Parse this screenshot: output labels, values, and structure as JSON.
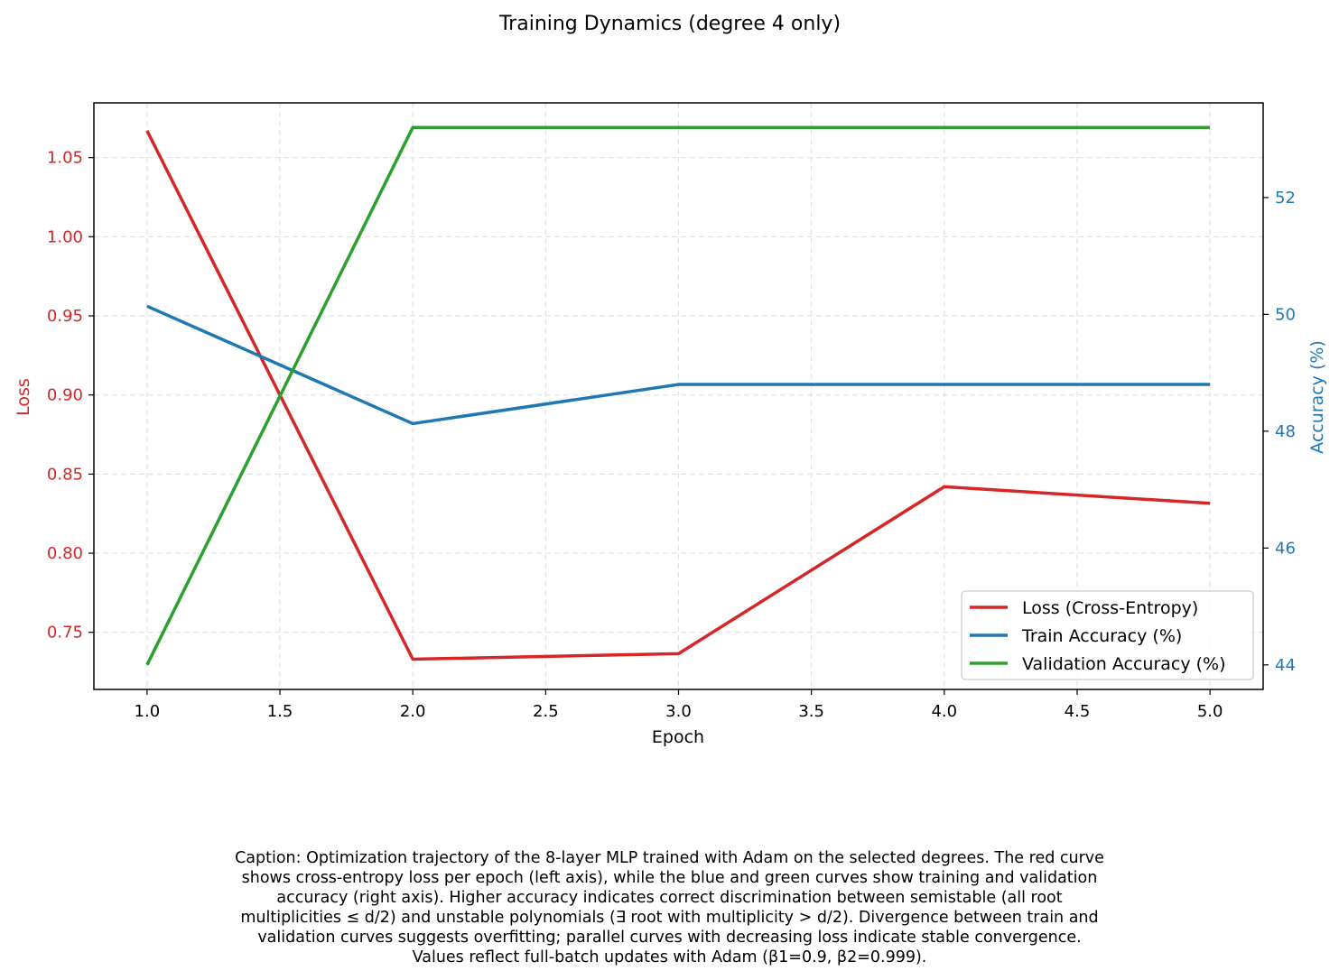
{
  "chart_data": {
    "type": "line",
    "title": "Training Dynamics (degree 4 only)",
    "xlabel": "Epoch",
    "ylabel_left": "Loss",
    "ylabel_right": "Accuracy (%)",
    "x": [
      1,
      2,
      3,
      4,
      5
    ],
    "xlim": [
      0.8,
      5.2
    ],
    "ylim_left": [
      0.7139,
      1.0846
    ],
    "ylim_right": [
      43.58,
      53.62
    ],
    "xticks": [
      "1.0",
      "1.5",
      "2.0",
      "2.5",
      "3.0",
      "3.5",
      "4.0",
      "4.5",
      "5.0"
    ],
    "yticks_left": [
      "0.75",
      "0.80",
      "0.85",
      "0.90",
      "0.95",
      "1.00",
      "1.05"
    ],
    "yticks_right": [
      "44",
      "46",
      "48",
      "50",
      "52"
    ],
    "grid": true,
    "legend_position": "lower-right",
    "series": [
      {
        "name": "Loss (Cross-Entropy)",
        "axis": "left",
        "color": "#d62728",
        "values": [
          1.067,
          0.733,
          0.7365,
          0.842,
          0.8315
        ]
      },
      {
        "name": "Train Accuracy (%)",
        "axis": "right",
        "color": "#1f77b4",
        "values": [
          50.14,
          48.13,
          48.8,
          48.8,
          48.8
        ]
      },
      {
        "name": "Validation Accuracy (%)",
        "axis": "right",
        "color": "#2ca02c",
        "values": [
          44.0,
          53.2,
          53.2,
          53.2,
          53.2
        ]
      }
    ]
  },
  "colors": {
    "left_axis": "#d62728",
    "right_axis": "#1f77b4"
  },
  "caption": "Caption: Optimization trajectory of the 8-layer MLP trained with Adam on the selected degrees. The red curve\nshows cross-entropy loss per epoch (left axis), while the blue and green curves show training and validation\naccuracy (right axis). Higher accuracy indicates correct discrimination between semistable (all root\nmultiplicities ≤ d/2) and unstable polynomials (∃ root with multiplicity > d/2). Divergence between train and\nvalidation curves suggests overfitting; parallel curves with decreasing loss indicate stable convergence.\nValues reflect full-batch updates with Adam (β1=0.9, β2=0.999)."
}
